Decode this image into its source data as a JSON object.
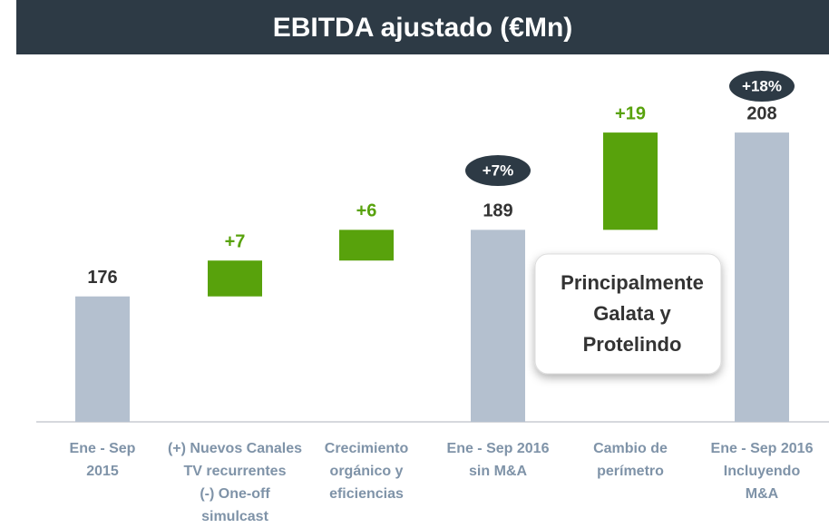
{
  "chart_data": {
    "type": "waterfall",
    "title": "EBITDA ajustado (€Mn)",
    "categories": [
      "Ene - Sep\n2015",
      "(+) Nuevos Canales\nTV recurrentes\n(-) One-off\nsimulcast",
      "Crecimiento\norgánico y\neficiencias",
      "Ene - Sep 2016\nsin M&A",
      "Cambio de\nperímetro",
      "Ene - Sep 2016\nIncluyendo\nM&A"
    ],
    "values": [
      176,
      7,
      6,
      189,
      19,
      208
    ],
    "value_labels": [
      "176",
      "+7",
      "+6",
      "189",
      "+19",
      "208"
    ],
    "measures": [
      "total",
      "relative",
      "relative",
      "total",
      "relative",
      "total"
    ],
    "total_color": "#b4c0cf",
    "delta_color": "#58a20c",
    "ylim": [
      151.5,
      215
    ],
    "annotations": [
      "+7%",
      "+18%"
    ],
    "callout": [
      "Principalmente",
      "Galata y",
      "Protelindo"
    ]
  }
}
